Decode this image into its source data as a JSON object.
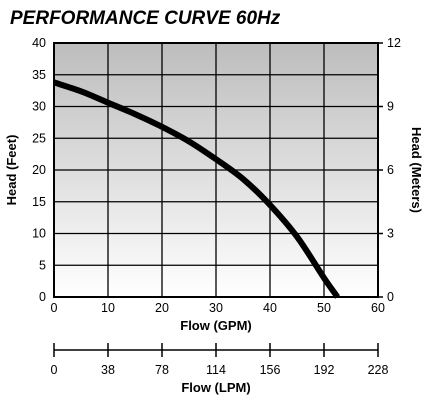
{
  "chart_data": {
    "type": "line",
    "title": "PERFORMANCE CURVE 60Hz",
    "xlabel": "Flow (GPM)",
    "ylabel": "Head (Feet)",
    "ylabel_right": "Head (Meters)",
    "xlabel_secondary": "Flow (LPM)",
    "xlim": [
      0,
      60
    ],
    "ylim": [
      0,
      40
    ],
    "ylim_right": [
      0,
      12
    ],
    "x_ticks": [
      "0",
      "10",
      "20",
      "30",
      "40",
      "50",
      "60"
    ],
    "y_ticks": [
      "0",
      "5",
      "10",
      "15",
      "20",
      "25",
      "30",
      "35",
      "40"
    ],
    "y_ticks_right": [
      "0",
      "3",
      "6",
      "9",
      "12"
    ],
    "secondary_x_ticks": [
      "0",
      "38",
      "78",
      "114",
      "156",
      "192",
      "228"
    ],
    "grid": true,
    "background": "gradient-gray",
    "series": [
      {
        "x": [
          0,
          5,
          10,
          15,
          20,
          25,
          30,
          35,
          40,
          45,
          50,
          52.5
        ],
        "y": [
          33.8,
          32.4,
          30.6,
          28.8,
          26.8,
          24.5,
          21.7,
          18.6,
          14.5,
          9.5,
          3.0,
          0
        ],
        "color": "#000000"
      }
    ]
  }
}
